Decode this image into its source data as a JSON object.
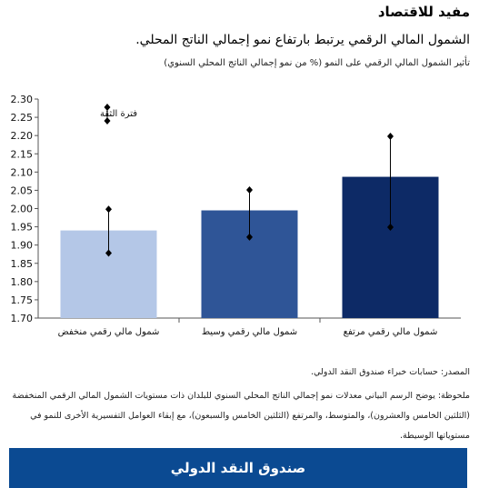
{
  "header": {
    "title": "مفيد للاقتصاد",
    "subtitle": "الشمول المالي الرقمي يرتبط بارتفاع نمو إجمالي الناتج المحلي.",
    "caption": "تأثير الشمول المالي الرقمي على النمو (% من نمو إجمالي الناتج المحلي السنوي)"
  },
  "chart_data": {
    "type": "bar",
    "categories": [
      "شمول مالي رقمي منخفض",
      "شمول مالي رقمي وسيط",
      "شمول مالي رقمي مرتفع"
    ],
    "values": [
      1.94,
      1.995,
      2.087
    ],
    "error_bars": [
      {
        "low": 1.878,
        "high": 1.998
      },
      {
        "low": 1.922,
        "high": 2.051
      },
      {
        "low": 1.949,
        "high": 2.198
      }
    ],
    "bar_colors": [
      "#b4c7e7",
      "#2f5597",
      "#0d2a66"
    ],
    "ylim": [
      1.7,
      2.3
    ],
    "yticks": [
      "1.70",
      "1.75",
      "1.80",
      "1.85",
      "1.90",
      "1.95",
      "2.00",
      "2.05",
      "2.10",
      "2.15",
      "2.20",
      "2.25",
      "2.30"
    ],
    "legend": {
      "label": "فترة الثقة",
      "placement": "top-left"
    },
    "grid": false
  },
  "footer": {
    "source": "المصدر: حسابات خبراء صندوق النقد الدولي.",
    "note": "ملحوظة: يوضح الرسم البياني معدلات نمو إجمالي الناتج المحلي السنوي للبلدان ذات مستويات الشمول المالي الرقمي المنخفضة (الثلثين الخامس والعشرون)، والمتوسط، والمرتفع (الثلثين الخامس والسبعون)، مع إبقاء العوامل التفسيرية الأخرى للنمو في مستوياتها الوسيطة.",
    "brand": "صندوق النقد الدولي",
    "brand_color": "#0b4a92"
  }
}
